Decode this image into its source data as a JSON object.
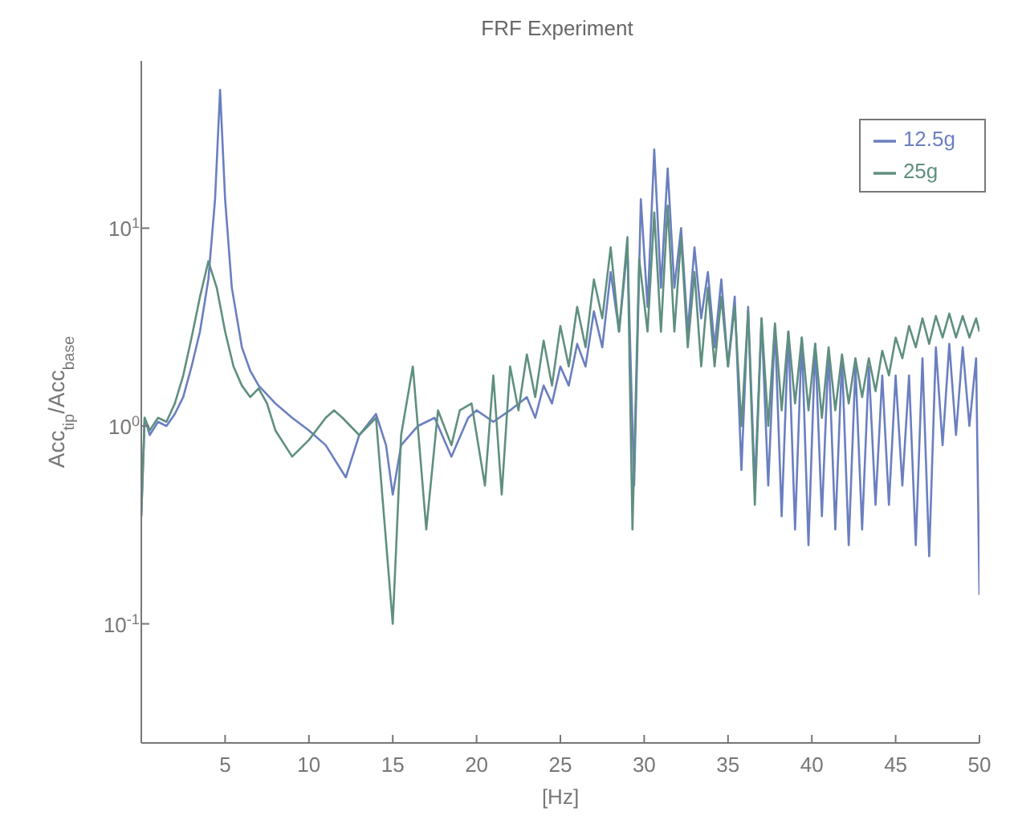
{
  "chart_data": {
    "type": "line",
    "title": "FRF Experiment",
    "xlabel": "[Hz]",
    "ylabel": "Acc$_{tip}$/Acc$_{base}$",
    "log": "y",
    "legend": "top right",
    "marker": "none",
    "line_style": "solid",
    "xlim": [
      0,
      50
    ],
    "xticks": [
      5,
      10,
      15,
      20,
      25,
      30,
      35,
      40,
      45,
      50
    ],
    "ylim": [
      0.025,
      70
    ],
    "yticks": [
      {
        "value": 0.1,
        "label": "10$^{-1}$"
      },
      {
        "value": 1,
        "label": "10$^{0}$"
      },
      {
        "value": 10,
        "label": "10$^{1}$"
      }
    ],
    "series": [
      {
        "name": "12.5g",
        "color": "#6a7fc0",
        "x": [
          0,
          0.2,
          0.5,
          1,
          1.5,
          2,
          2.5,
          3,
          3.5,
          4,
          4.4,
          4.7,
          5,
          5.4,
          6,
          6.5,
          7,
          8,
          9,
          10,
          11,
          12.2,
          13,
          14,
          14.6,
          15,
          15.5,
          16.5,
          17.5,
          18.5,
          19.5,
          20,
          21,
          22,
          23,
          23.5,
          24,
          24.5,
          25,
          25.5,
          26,
          26.5,
          27,
          27.5,
          28,
          28.5,
          29,
          29.4,
          29.8,
          30.2,
          30.6,
          31,
          31.4,
          31.8,
          32.2,
          32.6,
          33,
          33.4,
          33.8,
          34.2,
          34.6,
          35,
          35.4,
          35.8,
          36.2,
          36.6,
          37,
          37.4,
          37.8,
          38.2,
          38.6,
          39,
          39.4,
          39.8,
          40.2,
          40.6,
          41,
          41.4,
          41.8,
          42.2,
          42.6,
          43,
          43.4,
          43.8,
          44.2,
          44.6,
          45,
          45.4,
          45.8,
          46.2,
          46.6,
          47,
          47.4,
          47.8,
          48.2,
          48.6,
          49,
          49.4,
          49.8,
          50
        ],
        "values": [
          0.35,
          1.1,
          0.9,
          1.05,
          1.0,
          1.15,
          1.4,
          2.0,
          3.0,
          5.5,
          14,
          50,
          14,
          5,
          2.5,
          1.9,
          1.6,
          1.3,
          1.1,
          0.95,
          0.8,
          0.55,
          0.9,
          1.15,
          0.8,
          0.45,
          0.8,
          1.0,
          1.1,
          0.7,
          1.1,
          1.2,
          1.05,
          1.2,
          1.4,
          1.1,
          1.6,
          1.3,
          2.0,
          1.6,
          2.6,
          2.0,
          3.8,
          2.5,
          6,
          3,
          8,
          0.5,
          14,
          4,
          25,
          5,
          20,
          5,
          10,
          3,
          8,
          3.5,
          6,
          2.5,
          5.5,
          2,
          4.5,
          0.6,
          4,
          0.5,
          3.5,
          0.5,
          3.2,
          0.35,
          3,
          0.3,
          2.8,
          0.25,
          2.6,
          0.35,
          2.4,
          0.3,
          2.2,
          0.25,
          2,
          0.3,
          2,
          0.4,
          1.8,
          0.4,
          1.8,
          0.5,
          1.8,
          0.25,
          2.2,
          0.22,
          2.5,
          0.8,
          2.6,
          0.9,
          2.5,
          1.0,
          2.2,
          0.14
        ]
      },
      {
        "name": "25g",
        "color": "#5f8f80",
        "x": [
          0,
          0.2,
          0.5,
          1,
          1.5,
          2,
          2.5,
          3,
          3.5,
          4,
          4.5,
          5,
          5.5,
          6,
          6.5,
          7,
          7.5,
          8,
          9,
          10,
          11,
          11.5,
          12,
          13,
          14,
          15,
          15.5,
          16.2,
          17,
          17.7,
          18.5,
          19,
          19.7,
          20.5,
          21,
          21.5,
          22,
          22.5,
          23,
          23.5,
          24,
          24.5,
          25,
          25.5,
          26,
          26.5,
          27,
          27.5,
          28,
          28.5,
          29,
          29.3,
          29.7,
          30.2,
          30.6,
          31,
          31.4,
          31.8,
          32.2,
          32.6,
          33,
          33.4,
          33.8,
          34.2,
          34.6,
          35,
          35.4,
          35.8,
          36.2,
          36.6,
          37,
          37.4,
          37.8,
          38.2,
          38.6,
          39,
          39.4,
          39.8,
          40.2,
          40.6,
          41,
          41.4,
          41.8,
          42.2,
          42.6,
          43,
          43.4,
          43.8,
          44.2,
          44.6,
          45,
          45.4,
          45.8,
          46.2,
          46.6,
          47,
          47.4,
          47.8,
          48.2,
          48.6,
          49,
          49.4,
          49.8,
          50
        ],
        "values": [
          0.35,
          1.1,
          0.95,
          1.1,
          1.05,
          1.3,
          1.8,
          2.8,
          4.5,
          6.8,
          5,
          3,
          2,
          1.6,
          1.4,
          1.55,
          1.3,
          0.95,
          0.7,
          0.85,
          1.1,
          1.2,
          1.1,
          0.9,
          1.1,
          0.1,
          0.9,
          2,
          0.3,
          1.2,
          0.8,
          1.2,
          1.3,
          0.5,
          1.8,
          0.45,
          2,
          1.2,
          2.3,
          1.4,
          2.7,
          1.6,
          3.2,
          2,
          4,
          2.5,
          5.5,
          3.5,
          8,
          3,
          9,
          0.3,
          7,
          3,
          12,
          3,
          13,
          3,
          9,
          2.5,
          6,
          2,
          5,
          2,
          4.5,
          2,
          4,
          1,
          3.8,
          0.4,
          3.5,
          1,
          3.3,
          1.2,
          3,
          1.3,
          2.8,
          1.2,
          2.6,
          1.1,
          2.5,
          1.2,
          2.3,
          1.3,
          2.2,
          1.4,
          2.2,
          1.5,
          2.4,
          1.8,
          2.8,
          2.2,
          3.2,
          2.5,
          3.5,
          2.6,
          3.6,
          2.8,
          3.7,
          2.8,
          3.6,
          2.8,
          3.5,
          3
        ]
      }
    ]
  }
}
